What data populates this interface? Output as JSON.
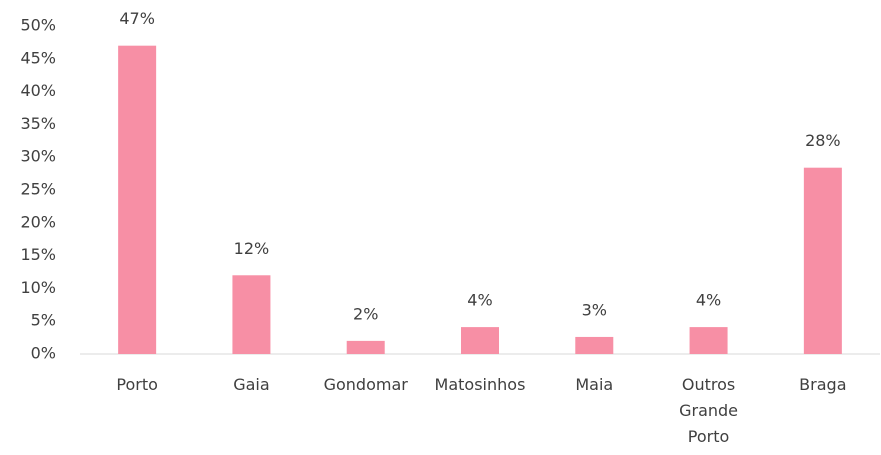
{
  "chart_data": {
    "type": "bar",
    "categories": [
      "Porto",
      "Gaia",
      "Gondomar",
      "Matosinhos",
      "Maia",
      "Outros Grande Porto",
      "Braga"
    ],
    "values": [
      47,
      12,
      2,
      4.1,
      2.6,
      4.1,
      28.4
    ],
    "value_labels": [
      "47%",
      "12%",
      "2%",
      "4%",
      "3%",
      "4%",
      "28%"
    ],
    "color": "#f78fa5",
    "ylim": [
      0,
      50
    ],
    "yticks": [
      {
        "value": 0,
        "label": "0%"
      },
      {
        "value": 5,
        "label": "5%"
      },
      {
        "value": 10,
        "label": "10%"
      },
      {
        "value": 15,
        "label": "15%"
      },
      {
        "value": 20,
        "label": "20%"
      },
      {
        "value": 25,
        "label": "25%"
      },
      {
        "value": 30,
        "label": "30%"
      },
      {
        "value": 35,
        "label": "35%"
      },
      {
        "value": 40,
        "label": "40%"
      },
      {
        "value": 45,
        "label": "45%"
      },
      {
        "value": 50,
        "label": "50%"
      }
    ],
    "grid": false
  }
}
